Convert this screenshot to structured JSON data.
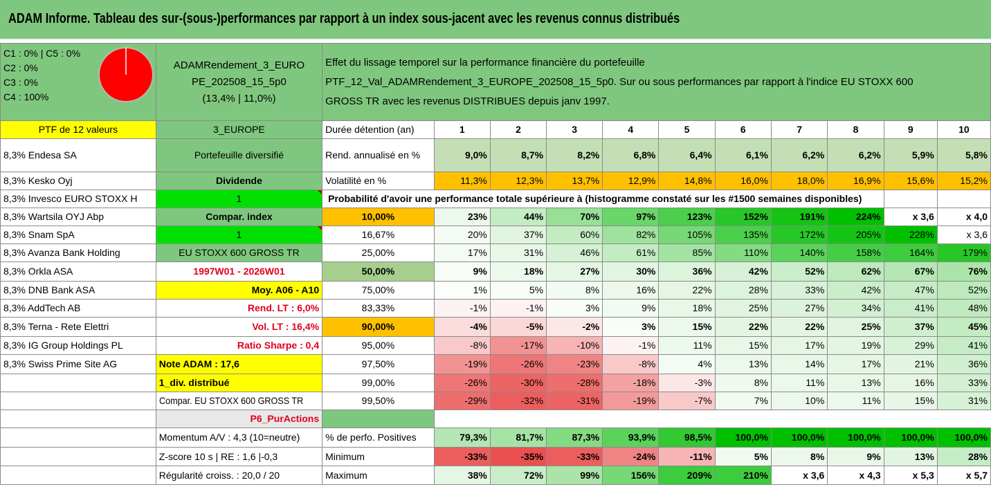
{
  "title": "ADAM Informe. Tableau des sur-(sous-)performances par rapport à un index sous-jacent avec les revenus connus distribués",
  "colors": {
    "title_bg": "#7fc77e",
    "yellow": "#ffff00",
    "orange": "#ffc000",
    "bright_green": "#00e000",
    "mid_green": "#8fce8c",
    "pie": "#ff0000",
    "red_text": "#e0001b"
  },
  "classes": [
    "C1 : 0% | C5 : 0%",
    "C2 : 0%",
    "C3 : 0%",
    "C4 : 100%"
  ],
  "pie_icon": "pie-chart-icon",
  "pie_share_c4": 100,
  "portfolio_name": [
    "ADAMRendement_3_EURO",
    "PE_202508_15_5p0",
    "(13,4% | 11,0%)"
  ],
  "effet": [
    "Effet du lissage temporel sur la performance financière du portefeuille",
    "PTF_12_Val_ADAMRendement_3_EUROPE_202508_15_5p0. Sur ou sous performances par rapport à l'indice EU STOXX 600",
    "GROSS TR avec les revenus DISTRIBUES depuis janv 1997."
  ],
  "ptf_label": "PTF de 12 valeurs",
  "region": "3_EUROPE",
  "duree_label": "Durée détention (an)",
  "years": [
    "1",
    "2",
    "3",
    "4",
    "5",
    "6",
    "7",
    "8",
    "9",
    "10"
  ],
  "holdings": [
    "8,3% Endesa SA",
    "8,3% Kesko Oyj",
    "8,3% Invesco EURO STOXX H",
    "8,3% Wartsila OYJ Abp",
    "8,3% Snam SpA",
    "8,3% Avanza Bank Holding",
    "8,3% Orkla ASA",
    "8,3% DNB Bank ASA",
    "8,3% AddTech AB",
    "8,3% Terna - Rete Elettri",
    "8,3% IG Group Holdings PL",
    "8,3% Swiss Prime Site AG"
  ],
  "params": {
    "diversifie": "Portefeuille diversifié",
    "dividende": "Dividende",
    "one_a": "1",
    "compar_index": "Compar. index",
    "one_b": "1",
    "index_name": "EU STOXX 600 GROSS TR",
    "period": "1997W01 - 2026W01",
    "moy": "Moy. A06 - A10",
    "rend_lt": "Rend. LT : 6,0%",
    "vol_lt": "Vol. LT : 16,4%",
    "sharpe": "Ratio Sharpe : 0,4",
    "note": "Note ADAM : 17,6",
    "div": "1_div. distribué",
    "compar_full": "Compar. EU STOXX 600 GROSS TR",
    "p6": "P6_PurActions",
    "momentum": "Momentum A/V : 4,3 (10=neutre)",
    "zscore": "Z-score 10 s | RE : 1,6 |-0,3",
    "regularite": "Régularité croiss. : 20,0 / 20"
  },
  "rend": {
    "label": "Rend. annualisé en %",
    "values": [
      "9,0%",
      "8,7%",
      "8,2%",
      "6,8%",
      "6,4%",
      "6,1%",
      "6,2%",
      "6,2%",
      "5,9%",
      "5,8%"
    ]
  },
  "vol": {
    "label": "Volatilité en %",
    "values": [
      "11,3%",
      "12,3%",
      "13,7%",
      "12,9%",
      "14,8%",
      "16,0%",
      "18,0%",
      "16,9%",
      "15,6%",
      "15,2%"
    ]
  },
  "proba_label": "Probabilité d'avoir une performance totale supérieure à (histogramme constaté sur les #1500 semaines disponibles)",
  "proba_rows": [
    {
      "level": "10,00%",
      "values": [
        "23%",
        "44%",
        "70%",
        "97%",
        "123%",
        "152%",
        "191%",
        "224%",
        "x 3,6",
        "x 4,0"
      ]
    },
    {
      "level": "16,67%",
      "values": [
        "20%",
        "37%",
        "60%",
        "82%",
        "105%",
        "135%",
        "172%",
        "205%",
        "228%",
        "x 3,6"
      ]
    },
    {
      "level": "25,00%",
      "values": [
        "17%",
        "31%",
        "46%",
        "61%",
        "85%",
        "110%",
        "140%",
        "158%",
        "164%",
        "179%"
      ]
    },
    {
      "level": "50,00%",
      "values": [
        "9%",
        "18%",
        "27%",
        "30%",
        "36%",
        "42%",
        "52%",
        "62%",
        "67%",
        "76%"
      ]
    },
    {
      "level": "75,00%",
      "values": [
        "1%",
        "5%",
        "8%",
        "16%",
        "22%",
        "28%",
        "33%",
        "42%",
        "47%",
        "52%"
      ]
    },
    {
      "level": "83,33%",
      "values": [
        "-1%",
        "-1%",
        "3%",
        "9%",
        "18%",
        "25%",
        "27%",
        "34%",
        "41%",
        "48%"
      ]
    },
    {
      "level": "90,00%",
      "values": [
        "-4%",
        "-5%",
        "-2%",
        "3%",
        "15%",
        "22%",
        "22%",
        "25%",
        "37%",
        "45%"
      ]
    },
    {
      "level": "95,00%",
      "values": [
        "-8%",
        "-17%",
        "-10%",
        "-1%",
        "11%",
        "15%",
        "17%",
        "19%",
        "29%",
        "41%"
      ]
    },
    {
      "level": "97,50%",
      "values": [
        "-19%",
        "-26%",
        "-23%",
        "-8%",
        "4%",
        "13%",
        "14%",
        "17%",
        "21%",
        "36%"
      ]
    },
    {
      "level": "99,00%",
      "values": [
        "-26%",
        "-30%",
        "-28%",
        "-18%",
        "-3%",
        "8%",
        "11%",
        "13%",
        "16%",
        "33%"
      ]
    },
    {
      "level": "99,50%",
      "values": [
        "-29%",
        "-32%",
        "-31%",
        "-19%",
        "-7%",
        "7%",
        "10%",
        "11%",
        "15%",
        "31%"
      ]
    }
  ],
  "pos": {
    "label": "% de perfo. Positives",
    "values": [
      "79,3%",
      "81,7%",
      "87,3%",
      "93,9%",
      "98,5%",
      "100,0%",
      "100,0%",
      "100,0%",
      "100,0%",
      "100,0%"
    ]
  },
  "min": {
    "label": "Minimum",
    "values": [
      "-33%",
      "-35%",
      "-33%",
      "-24%",
      "-11%",
      "5%",
      "8%",
      "9%",
      "13%",
      "28%"
    ]
  },
  "max": {
    "label": "Maximum",
    "values": [
      "38%",
      "72%",
      "99%",
      "156%",
      "209%",
      "210%",
      "x 3,6",
      "x 4,3",
      "x 5,3",
      "x 5,7"
    ]
  },
  "cell_colors": {
    "rend": [
      "#c4dfb5",
      "#c4dfb5",
      "#c4dfb5",
      "#c4dfb5",
      "#c4dfb5",
      "#c4dfb5",
      "#c4dfb5",
      "#c4dfb5",
      "#c4dfb5",
      "#c4dfb5"
    ],
    "vol": [
      "#ffc000",
      "#ffc000",
      "#ffc000",
      "#ffc000",
      "#ffc000",
      "#ffc000",
      "#ffc000",
      "#ffc000",
      "#ffc000",
      "#ffc000"
    ],
    "proba": [
      [
        "#edf8ec",
        "#c3ecc2",
        "#97e096",
        "#6ad66a",
        "#4ccf4c",
        "#27c727",
        "#14c314",
        "#00c000",
        "#ffffff",
        "#ffffff"
      ],
      [
        "#f4fbf4",
        "#e0f4df",
        "#c3ecc2",
        "#9ee29d",
        "#77d877",
        "#4ccf4c",
        "#27c727",
        "#14c314",
        "#00c000",
        "#ffffff"
      ],
      [
        "#f4fbf4",
        "#e9f7e8",
        "#d6f1d5",
        "#c3ecc2",
        "#a2e3a1",
        "#83db82",
        "#5bd35b",
        "#45ce45",
        "#3dcc3d",
        "#27c727"
      ],
      [
        "#f7fcf7",
        "#eef9ee",
        "#e6f6e5",
        "#e2f5e2",
        "#ddf4dc",
        "#d6f1d5",
        "#cbeeca",
        "#bde9bc",
        "#b5e6b4",
        "#aae4a9"
      ],
      [
        "#fbfefb",
        "#f7fcf7",
        "#f2fbf2",
        "#ebf8eb",
        "#e6f6e5",
        "#ddf4dc",
        "#d8f2d8",
        "#cbeeca",
        "#c6ecc5",
        "#bde9bc"
      ],
      [
        "#fdf2f2",
        "#fdf2f2",
        "#f8fdf8",
        "#f2fbf2",
        "#e9f7e8",
        "#e0f4df",
        "#dcf3db",
        "#d3f0d2",
        "#c9edc8",
        "#c0eabf"
      ],
      [
        "#fbdcdc",
        "#fbd8d8",
        "#fce7e7",
        "#f8fdf8",
        "#ebf8eb",
        "#e4f6e3",
        "#e4f6e3",
        "#e0f4df",
        "#d0efcf",
        "#c3ecc2"
      ],
      [
        "#f9c9c9",
        "#f29393",
        "#f7b4b4",
        "#fdf2f2",
        "#eef9ee",
        "#e9f7e8",
        "#e6f6e5",
        "#e4f6e3",
        "#d8f2d8",
        "#c6ecc5"
      ],
      [
        "#f29393",
        "#ef7676",
        "#f08484",
        "#f9c9c9",
        "#f4fbf4",
        "#ebf8eb",
        "#e9f7e8",
        "#e6f6e5",
        "#e2f5e2",
        "#d0efcf"
      ],
      [
        "#ef7676",
        "#ed6464",
        "#ee6e6e",
        "#f3a1a1",
        "#fce7e7",
        "#eff9ef",
        "#ebf8eb",
        "#e9f7e8",
        "#e6f6e5",
        "#d3f0d2"
      ],
      [
        "#ee6e6e",
        "#ec5e5e",
        "#ed6464",
        "#f29a9a",
        "#f9c9c9",
        "#f0faf0",
        "#ecf8ec",
        "#ebf8eb",
        "#e7f6e7",
        "#d6f1d5"
      ]
    ],
    "pos": [
      "#b3e6b2",
      "#a5e3a4",
      "#83db82",
      "#5bd35b",
      "#32c932",
      "#00c000",
      "#00c000",
      "#00c000",
      "#00c000",
      "#00c000"
    ],
    "min": [
      "#ec5e5e",
      "#ea5050",
      "#ec5e5e",
      "#f08484",
      "#f7b4b4",
      "#f2fbf2",
      "#ebf8eb",
      "#e9f7e8",
      "#e2f5e2",
      "#c6ecc5"
    ],
    "max": [
      "#e6f6e5",
      "#c9edc8",
      "#aae4a9",
      "#77d877",
      "#3dcc3d",
      "#3dcc3d",
      "#ffffff",
      "#ffffff",
      "#ffffff",
      "#ffffff"
    ]
  }
}
